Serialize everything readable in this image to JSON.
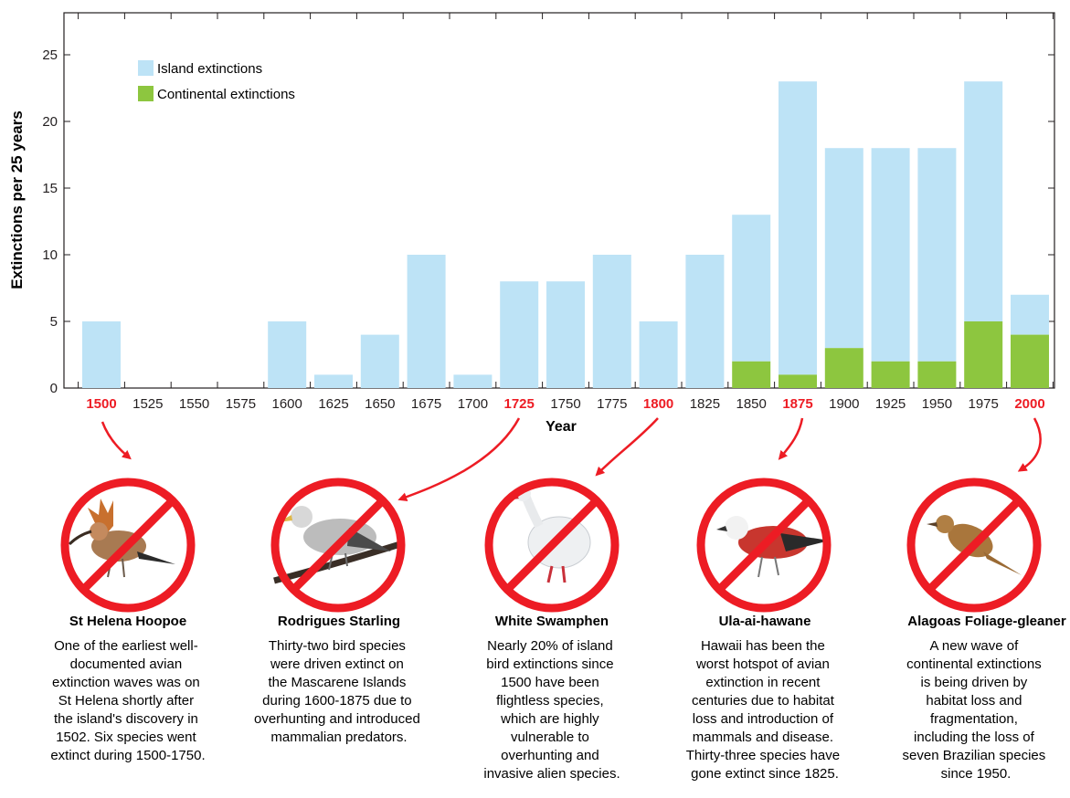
{
  "chart_data": {
    "type": "bar",
    "stacked": true,
    "categories": [
      "1500",
      "1525",
      "1550",
      "1575",
      "1600",
      "1625",
      "1650",
      "1675",
      "1700",
      "1725",
      "1750",
      "1775",
      "1800",
      "1825",
      "1850",
      "1875",
      "1900",
      "1925",
      "1950",
      "1975",
      "2000"
    ],
    "highlight_categories": [
      "1500",
      "1725",
      "1800",
      "1875",
      "2000"
    ],
    "series": [
      {
        "name": "Continental extinctions",
        "color": "#8dc63f",
        "values": [
          0,
          0,
          0,
          0,
          0,
          0,
          0,
          0,
          0,
          0,
          0,
          0,
          0,
          0,
          2,
          1,
          3,
          2,
          2,
          5,
          4
        ]
      },
      {
        "name": "Island extinctions",
        "color": "#bde3f6",
        "values": [
          5,
          0,
          0,
          0,
          5,
          1,
          4,
          10,
          1,
          8,
          8,
          10,
          5,
          10,
          11,
          22,
          15,
          16,
          16,
          18,
          3
        ]
      }
    ],
    "legend_order": [
      "Island extinctions",
      "Continental extinctions"
    ],
    "legend_position": "top-left",
    "ylabel": "Extinctions per 25 years",
    "xlabel": "Year",
    "ylim": [
      0,
      25
    ],
    "yticks": [
      0,
      5,
      10,
      15,
      20,
      25
    ],
    "highlight_color": "#ed1c24"
  },
  "birds": [
    {
      "name": "St Helena Hoopoe",
      "lines": [
        "One of the earliest well-",
        "documented avian",
        "extinction waves was on",
        "St Helena shortly after",
        "the island's discovery in",
        "1502. Six species went",
        "extinct during 1500-1750."
      ]
    },
    {
      "name": "Rodrigues Starling",
      "lines": [
        "Thirty-two bird species",
        "were driven extinct on",
        "the Mascarene Islands",
        "during 1600-1875 due to",
        "overhunting and introduced",
        "mammalian predators."
      ]
    },
    {
      "name": "White Swamphen",
      "lines": [
        "Nearly 20% of island",
        "bird extinctions since",
        "1500 have been",
        "flightless species,",
        "which are highly",
        "vulnerable to",
        "overhunting and",
        "invasive alien species."
      ]
    },
    {
      "name": "Ula-ai-hawane",
      "lines": [
        "Hawaii has been the",
        "worst hotspot of avian",
        "extinction in recent",
        "centuries due to habitat",
        "loss and introduction of",
        "mammals and disease.",
        "Thirty-three species have",
        "gone extinct since 1825."
      ]
    },
    {
      "name": "Alagoas Foliage-gleaner",
      "lines": [
        "A new wave of",
        "continental extinctions",
        "is being driven by",
        "habitat loss and",
        "fragmentation,",
        "including the loss of",
        "seven Brazilian species",
        "since 1950."
      ]
    }
  ]
}
